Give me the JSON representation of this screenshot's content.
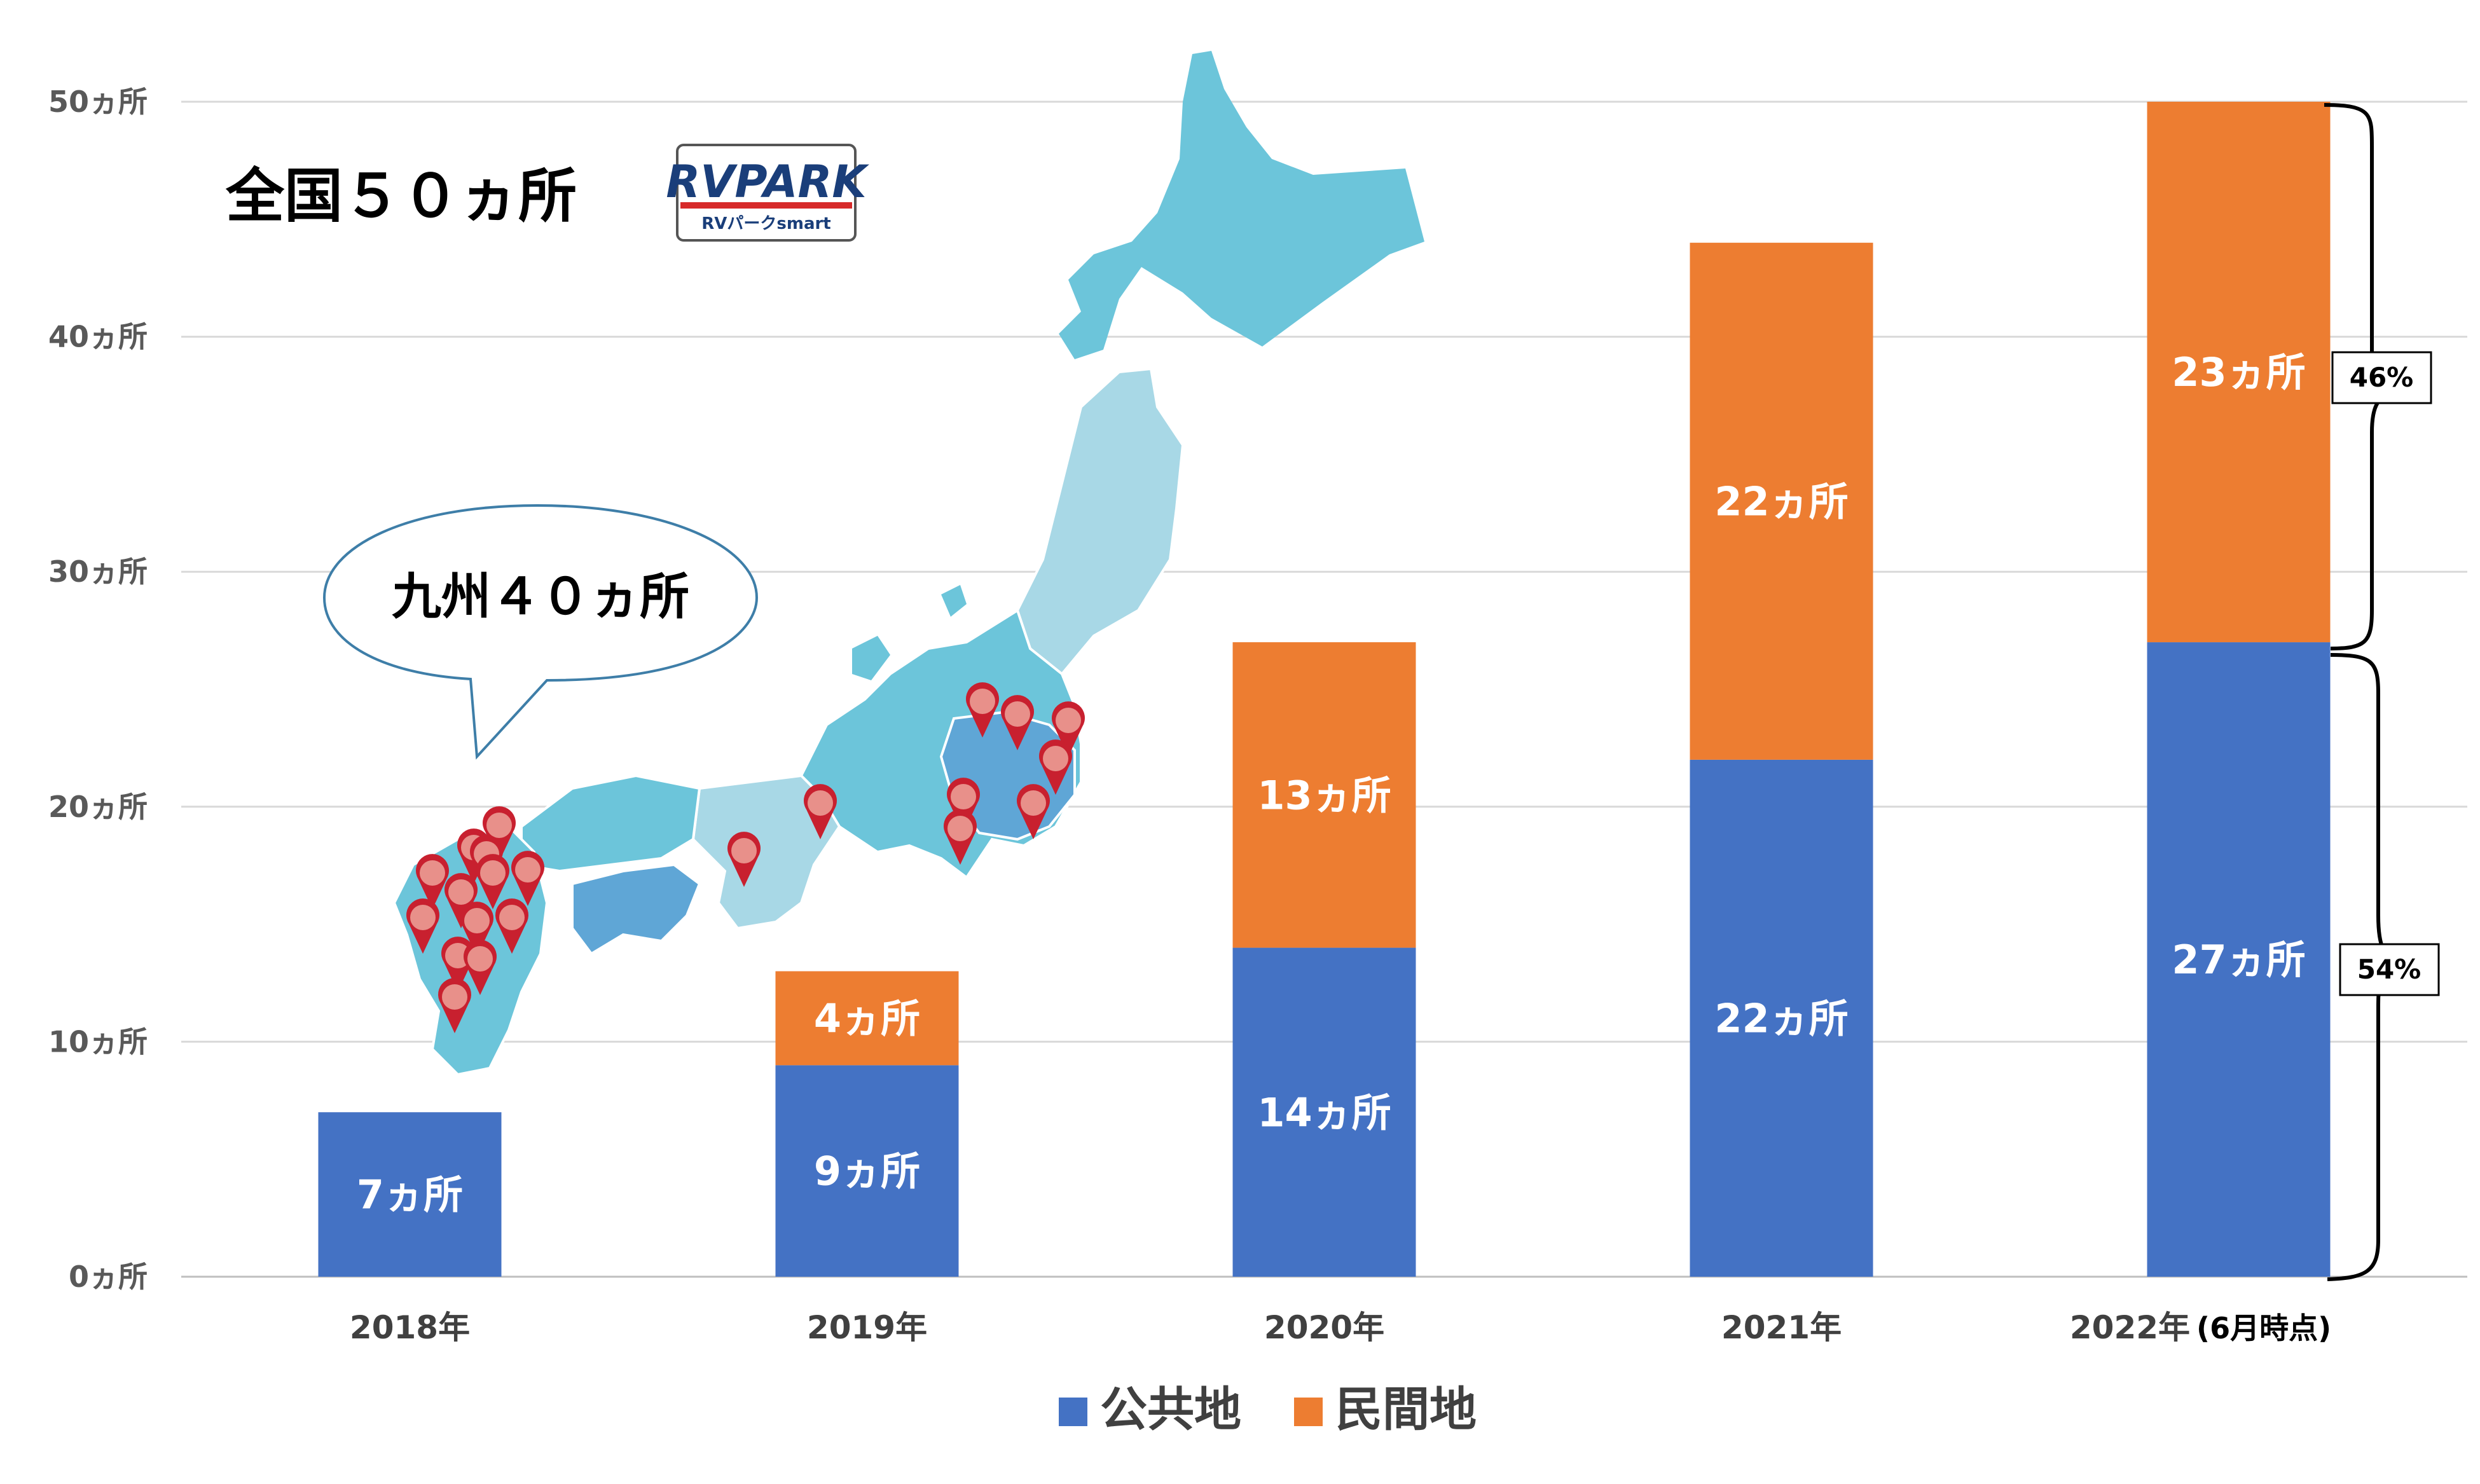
{
  "chart_data": {
    "type": "bar",
    "stacked": true,
    "categories": [
      "2018年",
      "2019年",
      "2020年",
      "2021年",
      "2022年"
    ],
    "category_note": "(6月時点)",
    "series": [
      {
        "name": "公共地",
        "color": "#4472c4",
        "values": [
          7,
          9,
          14,
          22,
          27
        ],
        "labels": [
          "7ヵ所",
          "9ヵ所",
          "14ヵ所",
          "22ヵ所",
          "27ヵ所"
        ]
      },
      {
        "name": "民間地",
        "color": "#ed7d31",
        "values": [
          0,
          4,
          13,
          22,
          23
        ],
        "labels": [
          "",
          "4ヵ所",
          "13ヵ所",
          "22ヵ所",
          "23ヵ所"
        ]
      }
    ],
    "yticks": [
      0,
      10,
      20,
      30,
      40,
      50
    ],
    "ytick_labels": [
      "0ヵ所",
      "10ヵ所",
      "20ヵ所",
      "30ヵ所",
      "40ヵ所",
      "50ヵ所"
    ],
    "ylim": [
      0,
      50
    ],
    "grid": true,
    "legend_position": "bottom",
    "annotations": {
      "total_title": "全国５０ヵ所",
      "kyushu_bubble": "九州４０ヵ所",
      "share_private": "46%",
      "share_public": "54%"
    }
  },
  "logo": {
    "text": "RVPARK",
    "subtitle": "RVパークsmart"
  },
  "map": {
    "description_icon": "japan-map",
    "pin_icon": "location-pin-icon",
    "main_color": "#6cc5da",
    "light_color": "#a8d8e6",
    "pin_color": "#c8202f",
    "pin_fill": "#e8908a"
  }
}
